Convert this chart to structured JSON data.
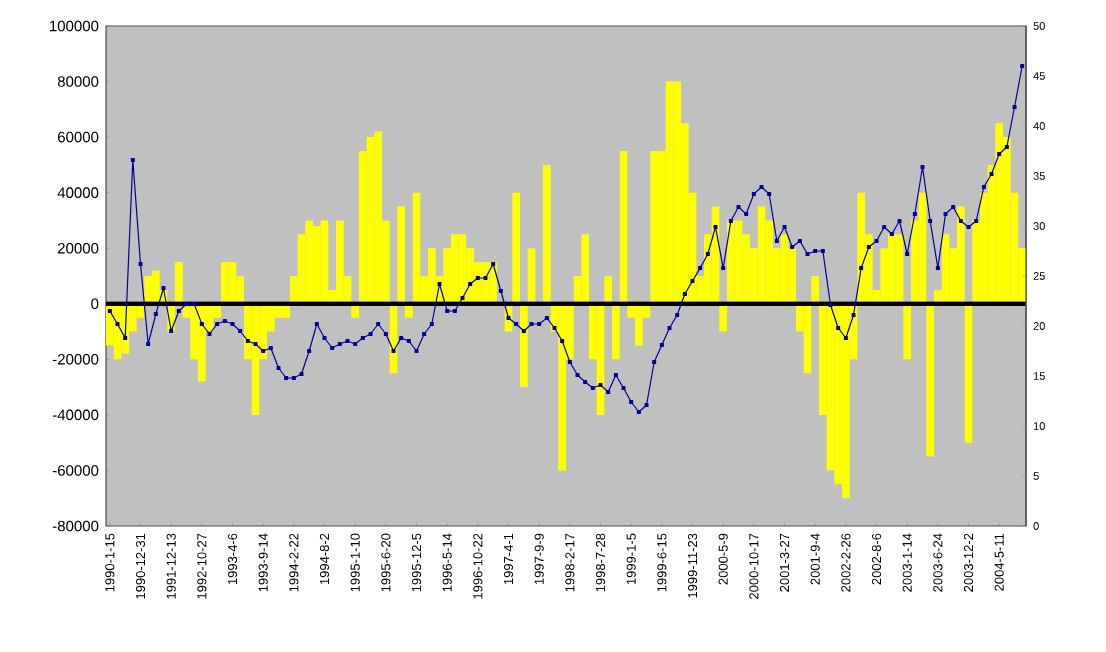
{
  "chart_data": {
    "type": "bar",
    "categories": [
      "1990-1-15",
      null,
      null,
      null,
      "1990-12-31",
      null,
      null,
      null,
      "1991-12-13",
      null,
      null,
      null,
      "1992-10-27",
      null,
      null,
      null,
      "1993-4-6",
      null,
      null,
      null,
      "1993-9-14",
      null,
      null,
      null,
      "1994-2-22",
      null,
      null,
      null,
      "1994-8-2",
      null,
      null,
      null,
      "1995-1-10",
      null,
      null,
      null,
      "1995-6-20",
      null,
      null,
      null,
      "1995-12-5",
      null,
      null,
      null,
      "1996-5-14",
      null,
      null,
      null,
      "1996-10-22",
      null,
      null,
      null,
      "1997-4-1",
      null,
      null,
      null,
      "1997-9-9",
      null,
      null,
      null,
      "1998-2-17",
      null,
      null,
      null,
      "1998-7-28",
      null,
      null,
      null,
      "1999-1-5",
      null,
      null,
      null,
      "1999-6-15",
      null,
      null,
      null,
      "1999-11-23",
      null,
      null,
      null,
      "2000-5-9",
      null,
      null,
      null,
      "2000-10-17",
      null,
      null,
      null,
      "2001-3-27",
      null,
      null,
      null,
      "2001-9-4",
      null,
      null,
      null,
      "2002-2-26",
      null,
      null,
      null,
      "2002-8-6",
      null,
      null,
      null,
      "2003-1-14",
      null,
      null,
      null,
      "2003-6-24",
      null,
      null,
      null,
      "2003-12-2",
      null,
      null,
      null,
      "2004-5-11",
      null,
      null,
      null
    ],
    "series": [
      {
        "color": "#ffff00",
        "values": [
          -15000,
          -20000,
          -18000,
          -10000,
          -5000,
          10000,
          12000,
          5000,
          -10000,
          15000,
          -5000,
          -20000,
          -28000,
          -10000,
          -5000,
          15000,
          15000,
          10000,
          -20000,
          -40000,
          -20000,
          -10000,
          -5000,
          -5000,
          10000,
          25000,
          30000,
          28000,
          30000,
          5000,
          30000,
          10000,
          -5000,
          55000,
          60000,
          62000,
          30000,
          -25000,
          35000,
          -5000,
          40000,
          10000,
          20000,
          10000,
          20000,
          25000,
          25000,
          20000,
          15000,
          15000,
          15000,
          0,
          -10000,
          40000,
          -30000,
          20000,
          0,
          50000,
          -10000,
          -60000,
          -20000,
          10000,
          25000,
          -20000,
          -40000,
          10000,
          -20000,
          55000,
          -5000,
          -15000,
          -5000,
          55000,
          55000,
          80000,
          80000,
          65000,
          40000,
          10000,
          25000,
          35000,
          -10000,
          30000,
          30000,
          25000,
          20000,
          35000,
          30000,
          20000,
          25000,
          20000,
          -10000,
          -25000,
          10000,
          -40000,
          -60000,
          -65000,
          -70000,
          -20000,
          40000,
          25000,
          5000,
          20000,
          25000,
          25000,
          -20000,
          30000,
          40000,
          -55000,
          5000,
          25000,
          20000,
          35000,
          -50000,
          30000,
          40000,
          50000,
          65000,
          60000,
          40000,
          20000
        ]
      },
      {
        "type": "line",
        "axis": "y2",
        "color": "#000099",
        "values": [
          21.5,
          20.2,
          18.8,
          36.6,
          26.2,
          18.2,
          21.2,
          23.8,
          19.5,
          21.5,
          22.2,
          22.2,
          20.2,
          19.2,
          20.2,
          20.5,
          20.2,
          19.5,
          18.5,
          18.2,
          17.5,
          17.8,
          15.8,
          14.8,
          14.8,
          15.2,
          17.5,
          20.2,
          18.8,
          17.8,
          18.2,
          18.5,
          18.2,
          18.8,
          19.2,
          20.2,
          19.2,
          17.5,
          18.8,
          18.5,
          17.5,
          19.2,
          20.2,
          24.2,
          21.5,
          21.5,
          22.8,
          24.2,
          24.8,
          24.8,
          26.2,
          23.5,
          20.8,
          20.2,
          19.5,
          20.2,
          20.2,
          20.8,
          19.8,
          18.5,
          16.4,
          15.1,
          14.4,
          13.8,
          14.1,
          13.4,
          15.1,
          13.8,
          12.4,
          11.4,
          12.1,
          16.4,
          18.1,
          19.8,
          21.1,
          23.2,
          24.5,
          25.8,
          27.2,
          29.9,
          25.8,
          30.5,
          31.9,
          31.2,
          33.2,
          33.9,
          33.2,
          28.5,
          29.9,
          27.9,
          28.5,
          27.2,
          27.5,
          27.5,
          22.1,
          19.8,
          18.8,
          21.1,
          25.8,
          27.9,
          28.5,
          29.9,
          29.2,
          30.5,
          27.2,
          31.2,
          35.9,
          30.5,
          25.8,
          31.2,
          31.9,
          30.5,
          29.9,
          30.5,
          33.9,
          35.2,
          37.2,
          37.9,
          41.9,
          46.0
        ]
      }
    ],
    "marker": "square",
    "ylim": [
      -80000,
      100000
    ],
    "yticks": [
      -80000,
      -60000,
      -40000,
      -20000,
      0,
      20000,
      40000,
      60000,
      80000,
      100000
    ],
    "y2lim": [
      0,
      50
    ],
    "y2ticks": [
      0,
      5,
      10,
      15,
      20,
      25,
      30,
      35,
      40,
      45,
      50
    ],
    "ref_lines": [
      {
        "axis": "y",
        "value": 0,
        "color": "#000000"
      }
    ]
  }
}
